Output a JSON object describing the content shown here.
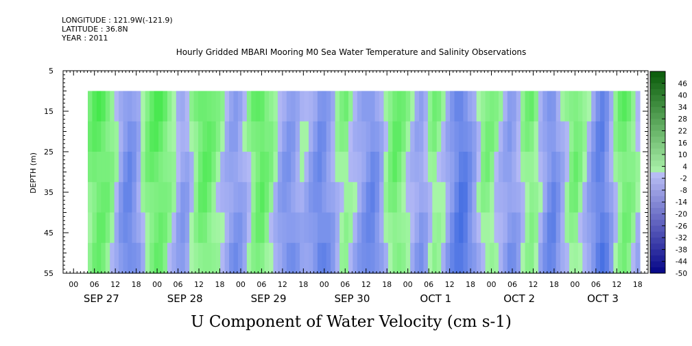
{
  "header": {
    "longitude": "LONGITUDE : 121.9W(-121.9)",
    "latitude": "LATITUDE : 36.8N",
    "year": "YEAR : 2011"
  },
  "chart_data": {
    "type": "heatmap",
    "title": "Hourly Gridded MBARI Mooring M0 Sea Water Temperature and Salinity Observations",
    "xlabel": "U Component of Water Velocity (cm s-1)",
    "ylabel": "DEPTH (m)",
    "y_axis": {
      "range": [
        5,
        55
      ],
      "inverted": true,
      "ticks": [
        5,
        15,
        25,
        35,
        45,
        55
      ]
    },
    "x_axis": {
      "hour_ticks": [
        "00",
        "06",
        "12",
        "18",
        "00",
        "06",
        "12",
        "18",
        "00",
        "06",
        "12",
        "18",
        "00",
        "06",
        "12",
        "18",
        "00",
        "06",
        "12",
        "18",
        "00",
        "06",
        "12",
        "18",
        "00",
        "06",
        "12",
        "18"
      ],
      "date_labels": [
        "SEP 27",
        "SEP 28",
        "SEP 29",
        "SEP 30",
        "OCT  1",
        "OCT  2",
        "OCT  3"
      ],
      "start_hour_offset": -3,
      "hours_total": 168
    },
    "data_depth_range": [
      10,
      55
    ],
    "colorbar": {
      "levels": [
        "46",
        "40",
        "34",
        "28",
        "22",
        "16",
        "10",
        "4",
        "-2",
        "-8",
        "-14",
        "-20",
        "-26",
        "-32",
        "-38",
        "-44",
        "-50"
      ],
      "range": [
        -50,
        52
      ]
    },
    "column_values_cm_s": [
      10,
      14,
      16,
      15,
      12,
      8,
      2,
      -6,
      -12,
      -14,
      -10,
      -4,
      4,
      10,
      14,
      16,
      15,
      12,
      8,
      4,
      -2,
      -6,
      -4,
      2,
      8,
      14,
      16,
      14,
      10,
      6,
      2,
      -2,
      -6,
      -8,
      -6,
      -2,
      4,
      10,
      14,
      16,
      12,
      8,
      2,
      -4,
      -8,
      -10,
      -8,
      -4,
      0,
      -2,
      -6,
      -10,
      -14,
      -12,
      -8,
      -4,
      2,
      6,
      8,
      4,
      0,
      -4,
      -8,
      -12,
      -14,
      -10,
      -4,
      4,
      10,
      14,
      12,
      8,
      4,
      0,
      -4,
      -6,
      -2,
      4,
      8,
      6,
      2,
      -4,
      -10,
      -16,
      -20,
      -18,
      -12,
      -6,
      2,
      8,
      10,
      8,
      4,
      0,
      -4,
      -8,
      -6,
      -2,
      4,
      8,
      10,
      6,
      0,
      -6,
      -12,
      -14,
      -8,
      -2,
      4,
      10,
      12,
      8,
      2,
      -4,
      -10,
      -16,
      -18,
      -12,
      -4,
      4,
      10,
      14,
      12,
      8,
      2
    ]
  }
}
